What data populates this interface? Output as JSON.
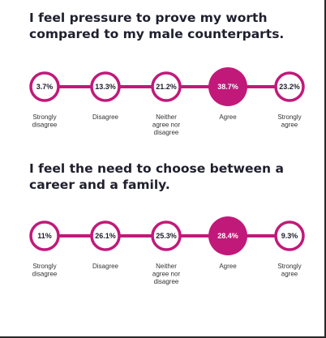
{
  "colors": {
    "accent": "#c1197a",
    "text": "#1f1f2e",
    "background": "#ffffff"
  },
  "questions": [
    {
      "title": "I feel pressure to prove my worth compared to my male counterparts."
    },
    {
      "title": "I feel the need to choose between a career and a family."
    }
  ],
  "chart_data": [
    {
      "type": "scale",
      "title": "I feel pressure to prove my worth compared to my male counterparts.",
      "categories": [
        [
          "Strongly",
          "disagree"
        ],
        [
          "Disagree"
        ],
        [
          "Neither",
          "agree nor",
          "disagree"
        ],
        [
          "Agree"
        ],
        [
          "Strongly",
          "agree"
        ]
      ],
      "values": [
        3.7,
        13.3,
        21.2,
        38.7,
        23.2
      ],
      "value_labels": [
        "3.7%",
        "13.3%",
        "21.2%",
        "38.7%",
        "23.2%"
      ],
      "highlight_index": 3
    },
    {
      "type": "scale",
      "title": "I feel the need to choose between a career and a family.",
      "categories": [
        [
          "Strongly",
          "disagree"
        ],
        [
          "Disagree"
        ],
        [
          "Neither",
          "agree nor",
          "disagree"
        ],
        [
          "Agree"
        ],
        [
          "Strongly",
          "agree"
        ]
      ],
      "values": [
        11,
        26.1,
        25.3,
        28.4,
        9.3
      ],
      "value_labels": [
        "11%",
        "26.1%",
        "25.3%",
        "28.4%",
        "9.3%"
      ],
      "highlight_index": 3
    }
  ]
}
